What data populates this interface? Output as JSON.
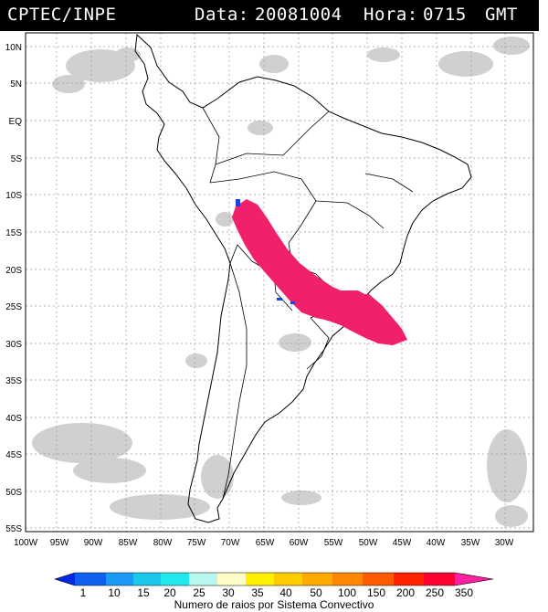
{
  "header": {
    "source": "CPTEC/INPE",
    "date_label": "Data:",
    "date_value": "20081004",
    "time_label": "Hora:",
    "time_value": "0715",
    "time_zone": "GMT"
  },
  "map": {
    "lat_labels": [
      "10N",
      "5N",
      "EQ",
      "5S",
      "10S",
      "15S",
      "20S",
      "25S",
      "30S",
      "35S",
      "40S",
      "45S",
      "50S",
      "55S"
    ],
    "lon_labels": [
      "100W",
      "95W",
      "90W",
      "85W",
      "80W",
      "75W",
      "70W",
      "65W",
      "60W",
      "55W",
      "50W",
      "45W",
      "40W",
      "35W",
      "30W"
    ],
    "grid": true,
    "lightning_color": "#f0206a",
    "small_cell_color": "#1e40e0"
  },
  "legend": {
    "ticks": [
      "1",
      "10",
      "15",
      "20",
      "25",
      "30",
      "35",
      "40",
      "50",
      "100",
      "150",
      "200",
      "250",
      "350"
    ],
    "colors": [
      "#0026e6",
      "#1060f0",
      "#1a9af5",
      "#19c8ea",
      "#22e8ee",
      "#b8f6f0",
      "#fffcc8",
      "#fff000",
      "#ffcc00",
      "#ffaa00",
      "#ff8800",
      "#ff5a00",
      "#ff2200",
      "#ff0030",
      "#ff20a0"
    ],
    "caption": "Numero de raios por Sistema Convectivo"
  }
}
